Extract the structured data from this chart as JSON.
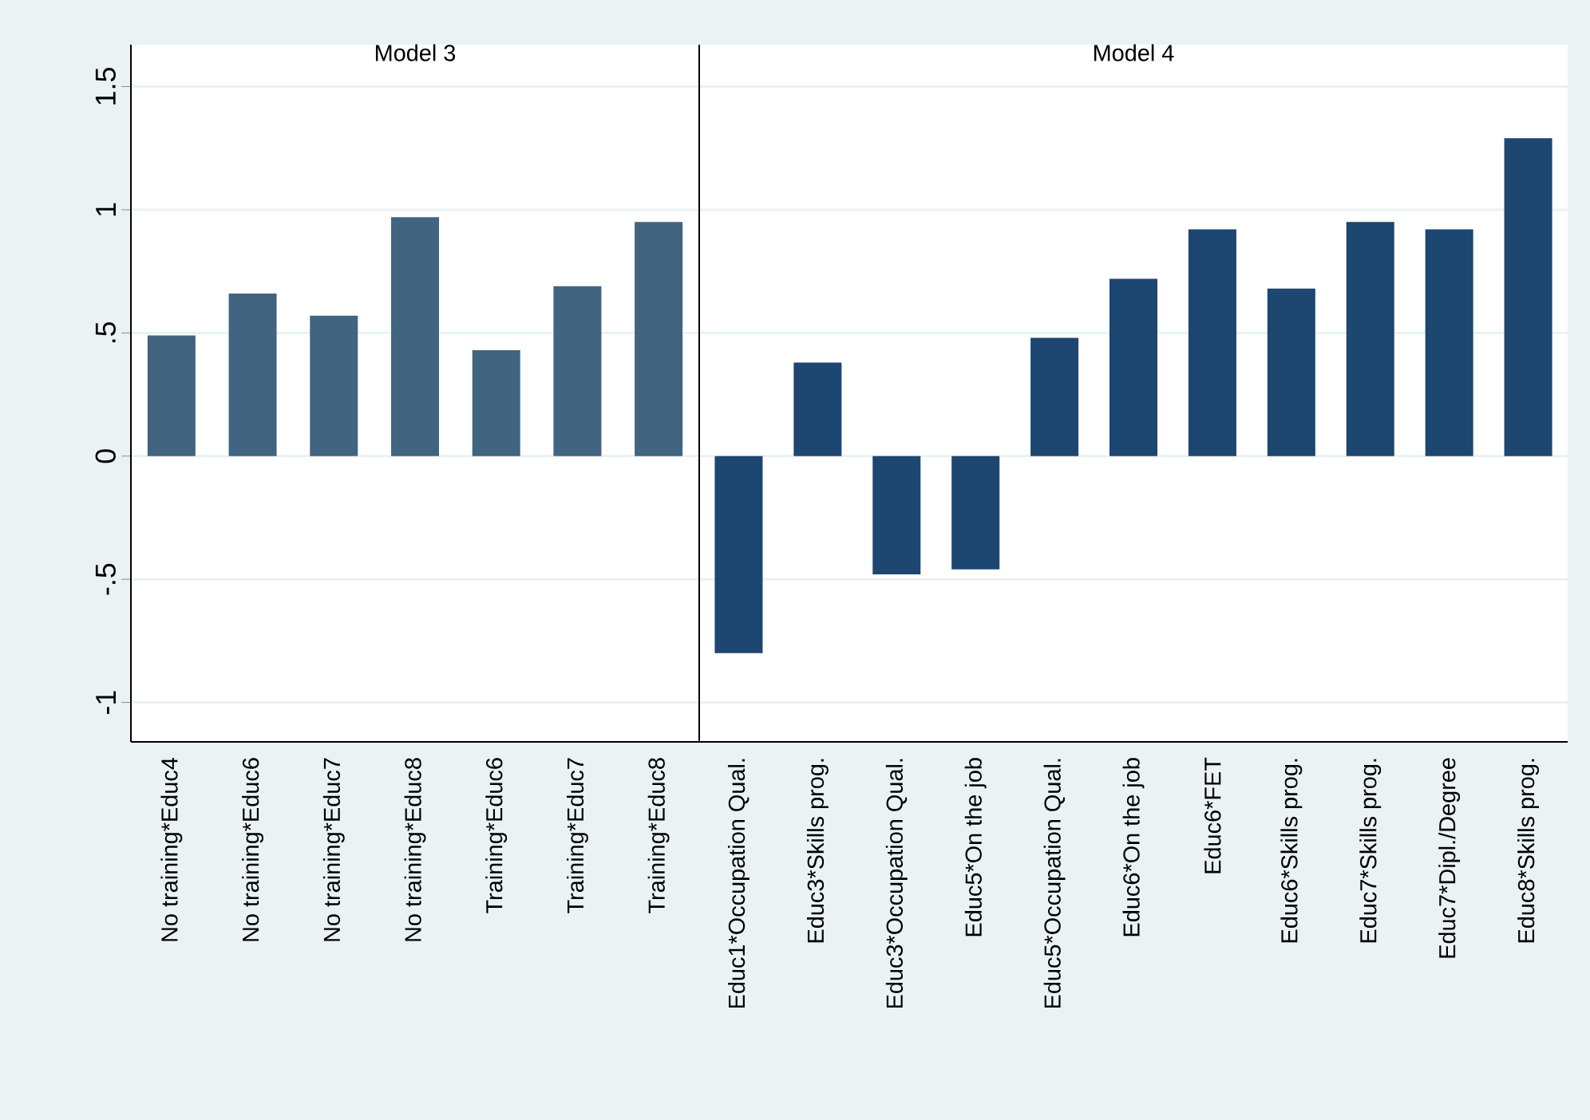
{
  "chart_data": [
    {
      "type": "bar",
      "title": "Model 3",
      "categories": [
        "No training*Educ4",
        "No training*Educ6",
        "No training*Educ7",
        "No training*Educ8",
        "Training*Educ6",
        "Training*Educ7",
        "Training*Educ8"
      ],
      "values": [
        0.49,
        0.66,
        0.57,
        0.97,
        0.43,
        0.69,
        0.95
      ],
      "color": "#416480",
      "ylim": [
        -1.16,
        1.67
      ],
      "yticks": [
        {
          "value": -1,
          "label": "-1"
        },
        {
          "value": -0.5,
          "label": "-.5"
        },
        0,
        {
          "value": 0.5,
          "label": ".5"
        },
        1,
        1.5
      ],
      "grid": "y"
    },
    {
      "type": "bar",
      "title": "Model 4",
      "categories": [
        "Educ1*Occupation Qual.",
        "Educ3*Skills prog.",
        "Educ3*Occupation Qual.",
        "Educ5*On the job",
        "Educ5*Occupation Qual.",
        "Educ6*On the job",
        "Educ6*FET",
        "Educ6*Skills prog.",
        "Educ7*Skills prog.",
        "Educ7*Dipl./Degree",
        "Educ8*Skills prog."
      ],
      "values": [
        -0.8,
        0.38,
        -0.48,
        -0.46,
        0.48,
        0.72,
        0.92,
        0.68,
        0.95,
        0.92,
        1.29
      ],
      "color": "#1d4670",
      "ylim": [
        -1.16,
        1.67
      ],
      "yticks": [
        -1,
        -0.5,
        0,
        0.5,
        1,
        1.5
      ],
      "grid": "y",
      "tick_labels": "x"
    }
  ]
}
